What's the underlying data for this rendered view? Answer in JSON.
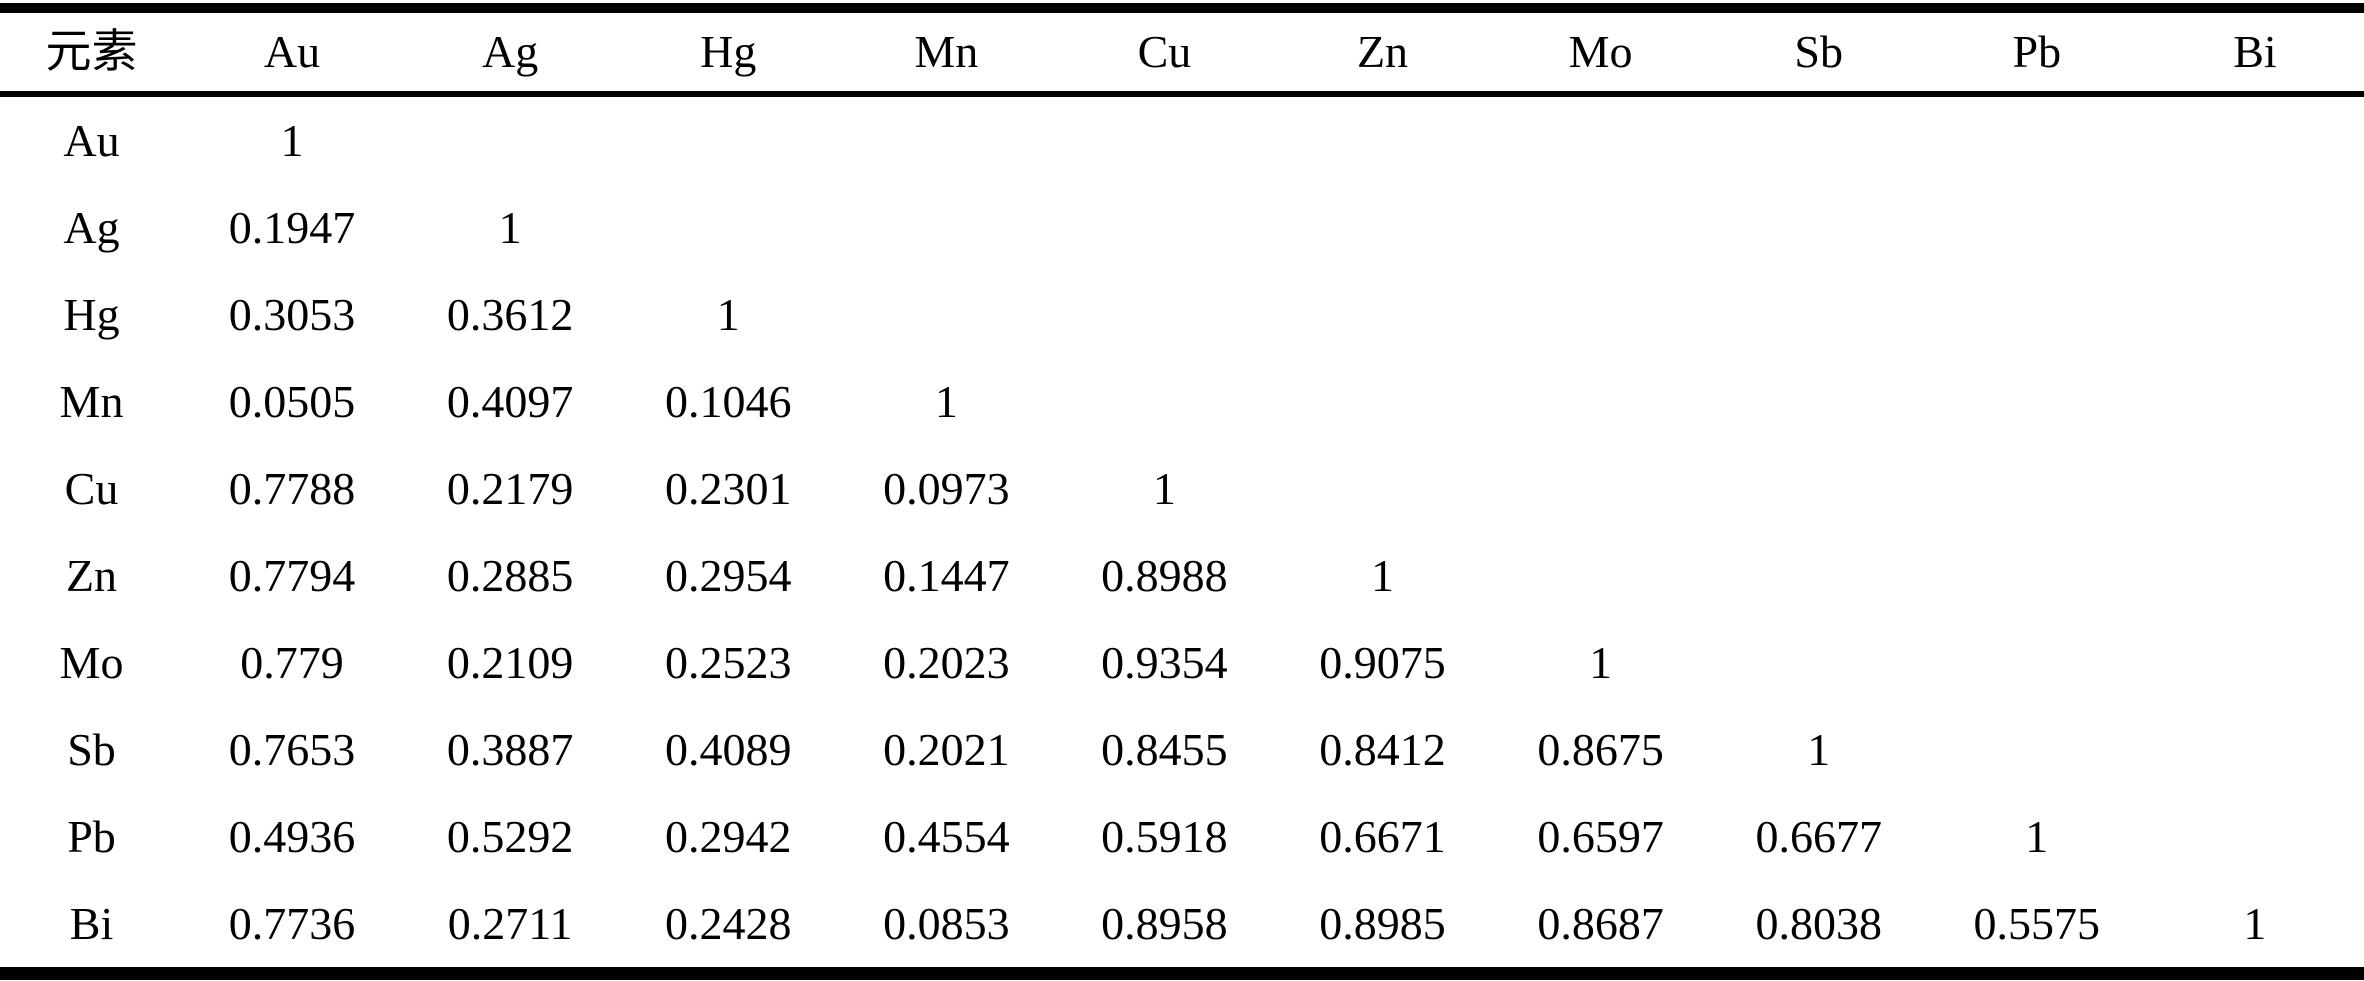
{
  "table": {
    "header": [
      "元素",
      "Au",
      "Ag",
      "Hg",
      "Mn",
      "Cu",
      "Zn",
      "Mo",
      "Sb",
      "Pb",
      "Bi"
    ],
    "rows": [
      {
        "label": "Au",
        "values": [
          "1"
        ]
      },
      {
        "label": "Ag",
        "values": [
          "0.1947",
          "1"
        ]
      },
      {
        "label": "Hg",
        "values": [
          "0.3053",
          "0.3612",
          "1"
        ]
      },
      {
        "label": "Mn",
        "values": [
          "0.0505",
          "0.4097",
          "0.1046",
          "1"
        ]
      },
      {
        "label": "Cu",
        "values": [
          "0.7788",
          "0.2179",
          "0.2301",
          "0.0973",
          "1"
        ]
      },
      {
        "label": "Zn",
        "values": [
          "0.7794",
          "0.2885",
          "0.2954",
          "0.1447",
          "0.8988",
          "1"
        ]
      },
      {
        "label": "Mo",
        "values": [
          "0.779",
          "0.2109",
          "0.2523",
          "0.2023",
          "0.9354",
          "0.9075",
          "1"
        ]
      },
      {
        "label": "Sb",
        "values": [
          "0.7653",
          "0.3887",
          "0.4089",
          "0.2021",
          "0.8455",
          "0.8412",
          "0.8675",
          "1"
        ]
      },
      {
        "label": "Pb",
        "values": [
          "0.4936",
          "0.5292",
          "0.2942",
          "0.4554",
          "0.5918",
          "0.6671",
          "0.6597",
          "0.6677",
          "1"
        ]
      },
      {
        "label": "Bi",
        "values": [
          "0.7736",
          "0.2711",
          "0.2428",
          "0.0853",
          "0.8958",
          "0.8985",
          "0.8687",
          "0.8038",
          "0.5575",
          "1"
        ]
      }
    ]
  },
  "colors": {
    "text": "#000000",
    "background": "#ffffff",
    "rule": "#000000"
  },
  "chart_data": {
    "type": "table",
    "title": "",
    "columns": [
      "元素",
      "Au",
      "Ag",
      "Hg",
      "Mn",
      "Cu",
      "Zn",
      "Mo",
      "Sb",
      "Pb",
      "Bi"
    ],
    "lower_triangle_correlations": {
      "Au": {
        "Au": 1
      },
      "Ag": {
        "Au": 0.1947,
        "Ag": 1
      },
      "Hg": {
        "Au": 0.3053,
        "Ag": 0.3612,
        "Hg": 1
      },
      "Mn": {
        "Au": 0.0505,
        "Ag": 0.4097,
        "Hg": 0.1046,
        "Mn": 1
      },
      "Cu": {
        "Au": 0.7788,
        "Ag": 0.2179,
        "Hg": 0.2301,
        "Mn": 0.0973,
        "Cu": 1
      },
      "Zn": {
        "Au": 0.7794,
        "Ag": 0.2885,
        "Hg": 0.2954,
        "Mn": 0.1447,
        "Cu": 0.8988,
        "Zn": 1
      },
      "Mo": {
        "Au": 0.779,
        "Ag": 0.2109,
        "Hg": 0.2523,
        "Mn": 0.2023,
        "Cu": 0.9354,
        "Zn": 0.9075,
        "Mo": 1
      },
      "Sb": {
        "Au": 0.7653,
        "Ag": 0.3887,
        "Hg": 0.4089,
        "Mn": 0.2021,
        "Cu": 0.8455,
        "Zn": 0.8412,
        "Mo": 0.8675,
        "Sb": 1
      },
      "Pb": {
        "Au": 0.4936,
        "Ag": 0.5292,
        "Hg": 0.2942,
        "Mn": 0.4554,
        "Cu": 0.5918,
        "Zn": 0.6671,
        "Mo": 0.6597,
        "Sb": 0.6677,
        "Pb": 1
      },
      "Bi": {
        "Au": 0.7736,
        "Ag": 0.2711,
        "Hg": 0.2428,
        "Mn": 0.0853,
        "Cu": 0.8958,
        "Zn": 0.8985,
        "Mo": 0.8687,
        "Sb": 0.8038,
        "Pb": 0.5575,
        "Bi": 1
      }
    }
  }
}
